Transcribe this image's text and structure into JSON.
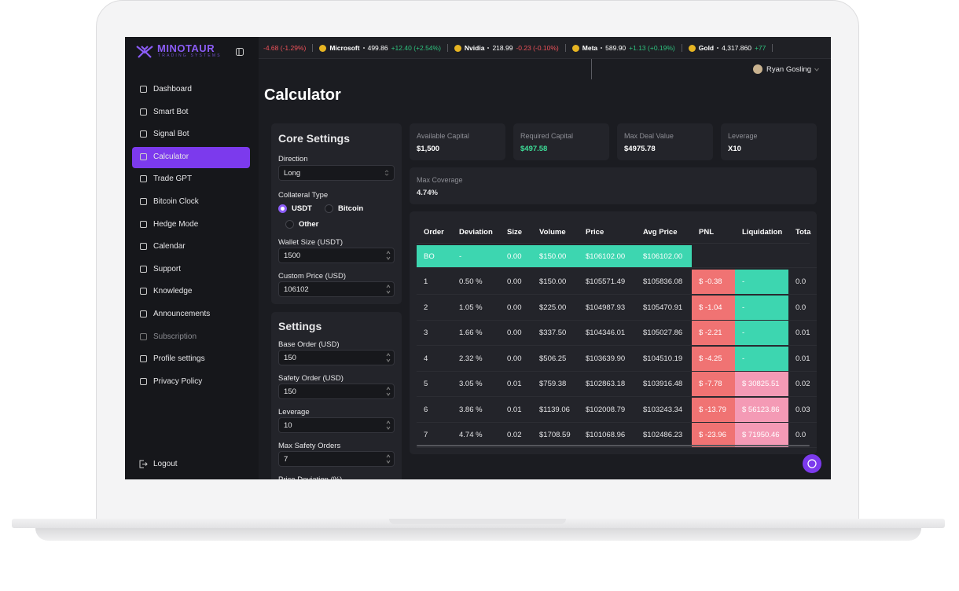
{
  "logo": {
    "name": "MINOTAUR",
    "tagline": "TRADING SYSTEMS"
  },
  "ticker": [
    {
      "change": "-4.68 (-1.29%)"
    },
    {
      "name": "Microsoft",
      "price": "499.86",
      "change": "+12.40 (+2.54%)"
    },
    {
      "name": "Nvidia",
      "price": "218.99",
      "change": "-0.23 (-0.10%)"
    },
    {
      "name": "Meta",
      "price": "589.90",
      "change": "+1.13 (+0.19%)"
    },
    {
      "name": "Gold",
      "price": "4,317.860",
      "change": "+77"
    }
  ],
  "user": "Ryan Gosling",
  "nav": {
    "items": [
      "Dashboard",
      "Smart Bot",
      "Signal Bot",
      "Calculator",
      "Trade GPT",
      "Bitcoin Clock",
      "Hedge Mode",
      "Calendar",
      "Support",
      "Knowledge",
      "Announcements",
      "Subscription",
      "Profile settings",
      "Privacy Policy"
    ],
    "active": 3,
    "logout": "Logout"
  },
  "page_title": "Calculator",
  "core_settings": {
    "title": "Core Settings",
    "direction": {
      "label": "Direction",
      "value": "Long"
    },
    "collateral": {
      "label": "Collateral Type",
      "options": [
        "USDT",
        "Bitcoin",
        "Other"
      ],
      "selected": 0
    },
    "wallet_size": {
      "label": "Wallet Size (USDT)",
      "value": "1500"
    },
    "custom_price": {
      "label": "Custom Price (USD)",
      "value": "106102"
    }
  },
  "settings": {
    "title": "Settings",
    "fields": [
      {
        "label": "Base Order (USD)",
        "value": "150"
      },
      {
        "label": "Safety Order (USD)",
        "value": "150"
      },
      {
        "label": "Leverage",
        "value": "10"
      },
      {
        "label": "Max Safety Orders",
        "value": "7"
      }
    ],
    "cut_label": "Price Deviation (%)"
  },
  "stats": [
    {
      "label": "Available Capital",
      "value": "$1,500"
    },
    {
      "label": "Required Capital",
      "value": "$497.58",
      "color": "#3ddc97"
    },
    {
      "label": "Max Deal Value",
      "value": "$4975.78"
    },
    {
      "label": "Leverage",
      "value": "X10"
    }
  ],
  "max_coverage": {
    "label": "Max Coverage",
    "value": "4.74%"
  },
  "table": {
    "headers": [
      "Order",
      "Deviation",
      "Size",
      "Volume",
      "Price",
      "Avg Price",
      "PNL",
      "Liquidation",
      "Tota"
    ],
    "rows": [
      [
        "BO",
        "-",
        "0.00",
        "$150.00",
        "$106102.00",
        "$106102.00",
        null,
        null,
        null
      ],
      [
        "1",
        "0.50 %",
        "0.00",
        "$150.00",
        "$105571.49",
        "$105836.08",
        "$ -0.38",
        "-",
        "0.0"
      ],
      [
        "2",
        "1.05 %",
        "0.00",
        "$225.00",
        "$104987.93",
        "$105470.91",
        "$ -1.04",
        "-",
        "0.0"
      ],
      [
        "3",
        "1.66 %",
        "0.00",
        "$337.50",
        "$104346.01",
        "$105027.86",
        "$ -2.21",
        "-",
        "0.01"
      ],
      [
        "4",
        "2.32 %",
        "0.00",
        "$506.25",
        "$103639.90",
        "$104510.19",
        "$ -4.25",
        "-",
        "0.01"
      ],
      [
        "5",
        "3.05 %",
        "0.01",
        "$759.38",
        "$102863.18",
        "$103916.48",
        "$ -7.78",
        "$ 30825.51",
        "0.02"
      ],
      [
        "6",
        "3.86 %",
        "0.01",
        "$1139.06",
        "$102008.79",
        "$103243.34",
        "$ -13.79",
        "$ 56123.86",
        "0.03"
      ],
      [
        "7",
        "4.74 %",
        "0.02",
        "$1708.59",
        "$101068.96",
        "$102486.23",
        "$ -23.96",
        "$ 71950.46",
        "0.0"
      ]
    ]
  }
}
